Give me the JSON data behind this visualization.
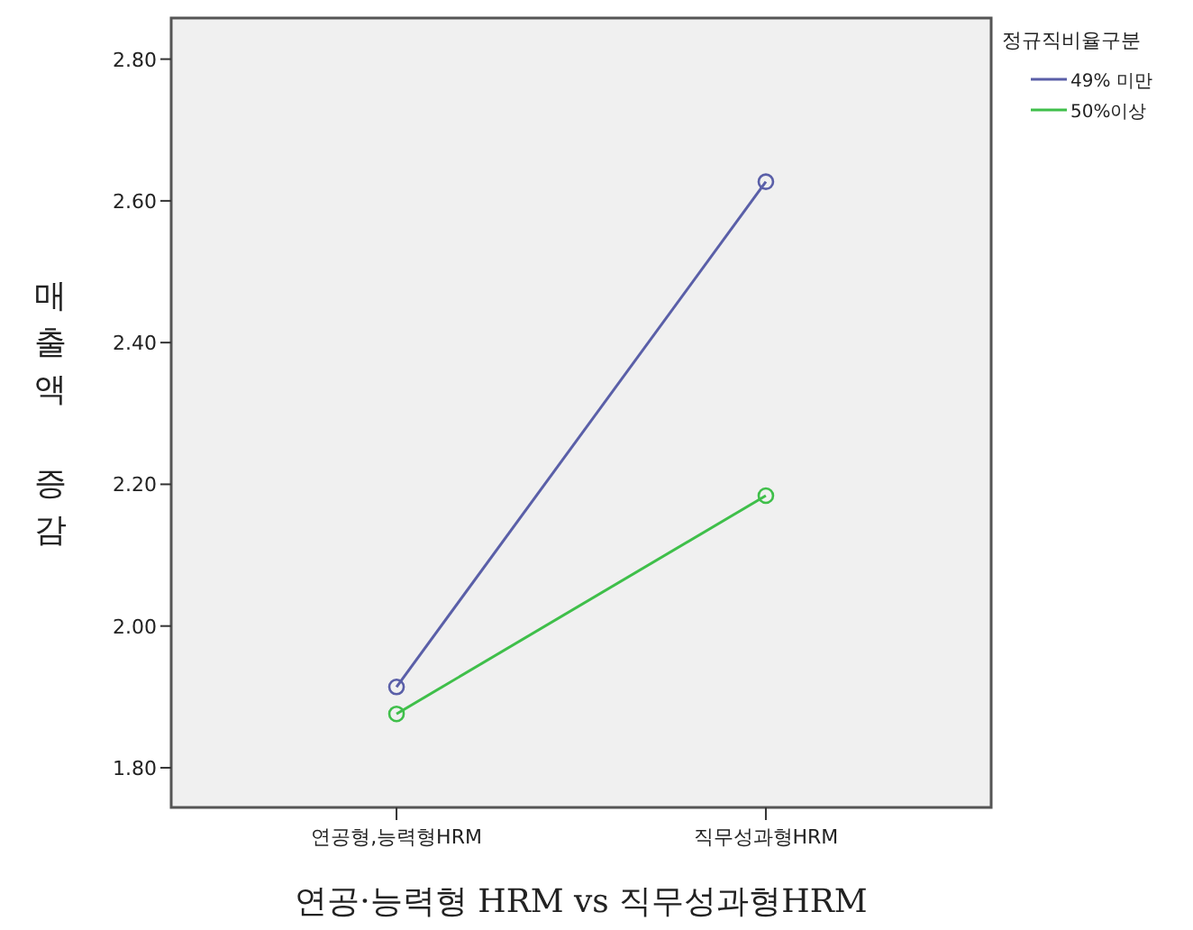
{
  "chart_data": {
    "type": "line",
    "xlabel": "연공·능력형 HRM vs 직무성과형HRM",
    "ylabel": "매출액 증감",
    "legend_title": "정규직비율구분",
    "categories": [
      "연공형,능력형HRM",
      "직무성과형HRM"
    ],
    "series": [
      {
        "name": "49% 미만",
        "color": "#5a5fa8",
        "values": [
          1.914,
          2.627
        ]
      },
      {
        "name": "50%이상",
        "color": "#3fbf4a",
        "values": [
          1.876,
          2.184
        ]
      }
    ],
    "ylim": [
      1.744,
      2.858
    ],
    "yticks": [
      {
        "value": 1.8,
        "label": "1.80"
      },
      {
        "value": 2.0,
        "label": "2.00"
      },
      {
        "value": 2.2,
        "label": "2.20"
      },
      {
        "value": 2.4,
        "label": "2.40"
      },
      {
        "value": 2.6,
        "label": "2.60"
      },
      {
        "value": 2.8,
        "label": "2.80"
      }
    ],
    "grid": false,
    "legend": "top right",
    "marker": "circle",
    "line_style": "solid"
  }
}
